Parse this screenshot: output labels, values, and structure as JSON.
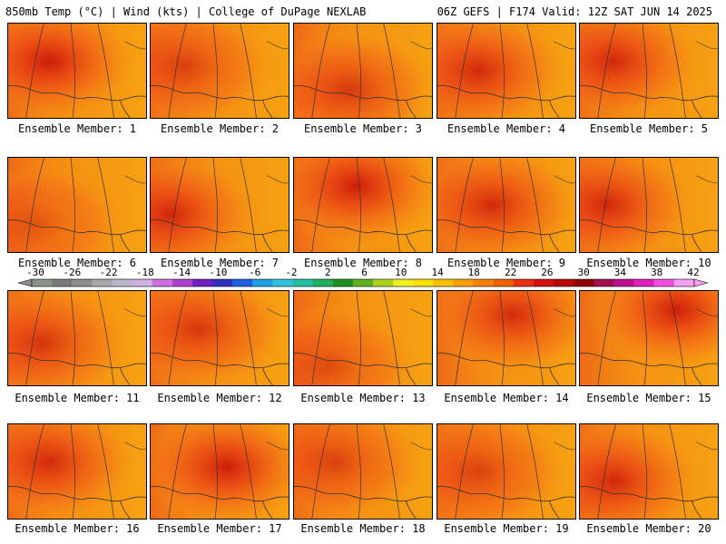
{
  "header": {
    "left": "850mb Temp (°C) | Wind (kts) | College of DuPage NEXLAB",
    "right": "06Z GEFS | F174 Valid: 12Z SAT JUN 14 2025"
  },
  "members": [
    {
      "label": "Ensemble Member: 1"
    },
    {
      "label": "Ensemble Member: 2"
    },
    {
      "label": "Ensemble Member: 3"
    },
    {
      "label": "Ensemble Member: 4"
    },
    {
      "label": "Ensemble Member: 5"
    },
    {
      "label": "Ensemble Member: 6"
    },
    {
      "label": "Ensemble Member: 7"
    },
    {
      "label": "Ensemble Member: 8"
    },
    {
      "label": "Ensemble Member: 9"
    },
    {
      "label": "Ensemble Member: 10"
    },
    {
      "label": "Ensemble Member: 11"
    },
    {
      "label": "Ensemble Member: 12"
    },
    {
      "label": "Ensemble Member: 13"
    },
    {
      "label": "Ensemble Member: 14"
    },
    {
      "label": "Ensemble Member: 15"
    },
    {
      "label": "Ensemble Member: 16"
    },
    {
      "label": "Ensemble Member: 17"
    },
    {
      "label": "Ensemble Member: 18"
    },
    {
      "label": "Ensemble Member: 19"
    },
    {
      "label": "Ensemble Member: 20"
    }
  ],
  "colorbar": {
    "labels": [
      "-30",
      "-26",
      "-22",
      "-18",
      "-14",
      "-10",
      "-6",
      "-2",
      "2",
      "6",
      "10",
      "14",
      "18",
      "22",
      "26",
      "30",
      "34",
      "38",
      "42"
    ],
    "colors": [
      "#8a948a",
      "#7a7a7a",
      "#8f8f8f",
      "#a8a8a8",
      "#b8b8c8",
      "#d0b0e0",
      "#d070e0",
      "#b040d0",
      "#7020c0",
      "#3030c0",
      "#2060e0",
      "#20a0e0",
      "#30c0e0",
      "#20c0a0",
      "#20b060",
      "#209020",
      "#60b020",
      "#b0d020",
      "#f0f020",
      "#f8e000",
      "#f8c000",
      "#f8a000",
      "#f88000",
      "#f06000",
      "#e83010",
      "#d81010",
      "#b80808",
      "#900000",
      "#a01050",
      "#c01090",
      "#e020c0",
      "#f050e0",
      "#f8a0f0"
    ]
  }
}
